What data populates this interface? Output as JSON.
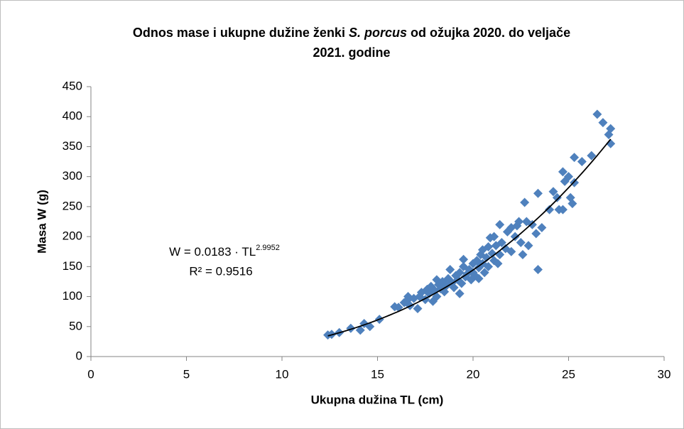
{
  "chart_data": {
    "type": "scatter",
    "title": [
      "Odnos mase i ukupne dužine ženki ",
      "S. porcus",
      " od ožujka 2020. do veljače",
      "2021. godine"
    ],
    "x_label": "Ukupna dužina TL (cm)",
    "y_label": "Masa W (g)",
    "xlim": [
      0,
      30
    ],
    "xticks": [
      0,
      5,
      10,
      15,
      20,
      25,
      30
    ],
    "ylim": [
      0,
      450
    ],
    "yticks": [
      0,
      50,
      100,
      150,
      200,
      250,
      300,
      350,
      400,
      450
    ],
    "grid": false,
    "series": [
      {
        "name": null,
        "color": "#4f81bd",
        "x": [
          12.4,
          12.6,
          13.0,
          13.6,
          14.1,
          14.3,
          14.6,
          15.1,
          15.9,
          16.1,
          16.4,
          16.6,
          16.6,
          16.7,
          16.9,
          17.1,
          17.2,
          17.3,
          17.5,
          17.6,
          17.7,
          17.8,
          17.9,
          18.0,
          18.1,
          18.1,
          18.2,
          18.3,
          18.4,
          18.5,
          18.6,
          18.7,
          18.8,
          18.9,
          19.0,
          19.1,
          19.2,
          19.3,
          19.3,
          19.4,
          19.5,
          19.5,
          19.6,
          19.7,
          19.8,
          19.9,
          20.0,
          20.0,
          20.1,
          20.2,
          20.3,
          20.3,
          20.4,
          20.5,
          20.5,
          20.6,
          20.7,
          20.8,
          20.8,
          20.9,
          21.0,
          21.1,
          21.1,
          21.2,
          21.3,
          21.4,
          21.4,
          21.5,
          21.7,
          21.8,
          22.0,
          22.0,
          22.2,
          22.3,
          22.4,
          22.5,
          22.6,
          22.7,
          22.8,
          22.9,
          23.1,
          23.3,
          23.4,
          23.4,
          23.6,
          24.0,
          24.2,
          24.4,
          24.5,
          24.7,
          24.7,
          24.8,
          25.0,
          25.1,
          25.2,
          25.3,
          25.3,
          25.7,
          26.2,
          26.5,
          26.8,
          27.1,
          27.2,
          27.2
        ],
        "values": [
          36,
          37,
          40,
          47,
          44,
          55,
          50,
          62,
          83,
          82,
          90,
          95,
          100,
          85,
          97,
          80,
          100,
          107,
          95,
          112,
          105,
          117,
          92,
          110,
          100,
          128,
          120,
          113,
          125,
          108,
          118,
          130,
          145,
          123,
          115,
          135,
          128,
          105,
          140,
          122,
          150,
          162,
          133,
          138,
          145,
          128,
          155,
          140,
          135,
          160,
          130,
          148,
          170,
          155,
          178,
          140,
          165,
          183,
          150,
          198,
          172,
          200,
          160,
          185,
          155,
          170,
          220,
          190,
          180,
          208,
          215,
          175,
          200,
          218,
          225,
          190,
          170,
          257,
          225,
          185,
          220,
          205,
          145,
          272,
          215,
          245,
          275,
          265,
          245,
          245,
          308,
          292,
          300,
          265,
          255,
          290,
          332,
          325,
          335,
          404,
          390,
          370,
          380,
          355
        ]
      }
    ],
    "trendline": {
      "a": 0.0183,
      "b": 2.9952,
      "r2": 0.9516,
      "label": "W = 0.0183 · TL",
      "label_exponent": "2.9952",
      "r2_label": "R² = 0.9516"
    }
  }
}
